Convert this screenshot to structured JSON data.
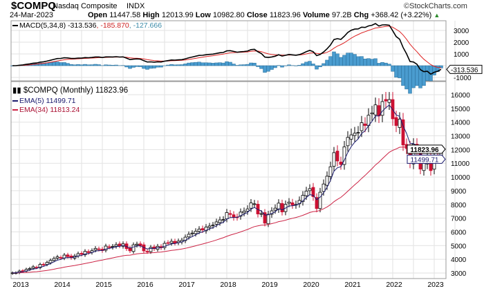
{
  "header": {
    "symbol": "$COMPQ",
    "name": "Nasdaq Composite",
    "exchange": "INDX",
    "brand": "©StockCharts.com",
    "date": "24-Mar-2023",
    "open_label": "Open",
    "open": "11447.58",
    "high_label": "High",
    "high": "12013.99",
    "low_label": "Low",
    "low": "10982.80",
    "close_label": "Close",
    "close": "11823.96",
    "volume_label": "Volume",
    "volume": "97.2B",
    "chg_label": "Chg",
    "chg": "+368.42 (+3.22%)",
    "up_arrow": "▲"
  },
  "macd_legend": {
    "label": "MACD(5,34,8)",
    "macd": "-313.536",
    "signal": ", -185.870",
    "hist": ", -127.666"
  },
  "price_legend": {
    "label": "$COMPQ (Monthly) 11823.96",
    "ema5": "EMA(5) 11499.71",
    "ema34": "EMA(34) 11813.24"
  },
  "colors": {
    "up": "#ffffff",
    "down": "#cc1133",
    "ema5": "#1a1a6e",
    "ema34": "#cc2244",
    "macd": "#000000",
    "signal": "#dd2222",
    "hist": "#4a9ccf"
  },
  "chart_data": {
    "type": "candlestick",
    "title": "$COMPQ Nasdaq Composite INDX (Monthly)",
    "start_month": "2012-11",
    "closes": [
      3010,
      3020,
      3142,
      3160,
      3268,
      3329,
      3456,
      3403,
      3626,
      3590,
      3771,
      3920,
      4060,
      4177,
      4104,
      4308,
      4199,
      4115,
      4243,
      4408,
      4370,
      4580,
      4493,
      4631,
      4792,
      4736,
      4635,
      4964,
      4901,
      4941,
      5070,
      4987,
      5128,
      4777,
      4620,
      5054,
      5109,
      5007,
      4614,
      4558,
      4870,
      4775,
      4948,
      4843,
      5162,
      5213,
      5312,
      5189,
      5324,
      5383,
      5615,
      5825,
      5912,
      6048,
      6199,
      6140,
      6348,
      6429,
      6496,
      6728,
      6874,
      6903,
      7411,
      7273,
      7063,
      7066,
      7442,
      7510,
      7672,
      8110,
      8046,
      7306,
      7331,
      6635,
      7282,
      7533,
      7729,
      8095,
      7453,
      8006,
      8175,
      7963,
      7999,
      8292,
      8665,
      8973,
      9151,
      8567,
      7700,
      8890,
      9490,
      10058,
      10745,
      11775,
      11168,
      10912,
      12199,
      12888,
      13071,
      13192,
      13247,
      13962,
      13749,
      14504,
      14673,
      15259,
      14449,
      15498,
      15538,
      15645,
      14240,
      13751,
      14221,
      12335,
      12081,
      11028,
      12391,
      11816,
      10576,
      10988,
      11468,
      10466,
      11584,
      11456,
      11824
    ],
    "price_axis": {
      "min": 3000,
      "max": 16000,
      "ticks": [
        "16000",
        "15000",
        "14000",
        "13000",
        "12000",
        "11000",
        "10000",
        "9000",
        "8000",
        "7000",
        "6000",
        "5000",
        "4000",
        "3000"
      ]
    },
    "macd_axis": {
      "ticks": [
        "3000",
        "2000",
        "1000",
        "0",
        "-1000"
      ]
    },
    "x_ticks": [
      "2013",
      "2014",
      "2015",
      "2016",
      "2017",
      "2018",
      "2019",
      "2020",
      "2021",
      "2022",
      "2023"
    ],
    "price_tag": "11823.96",
    "ema5_tag": "11499.71",
    "macd_tag": "-313.536"
  }
}
